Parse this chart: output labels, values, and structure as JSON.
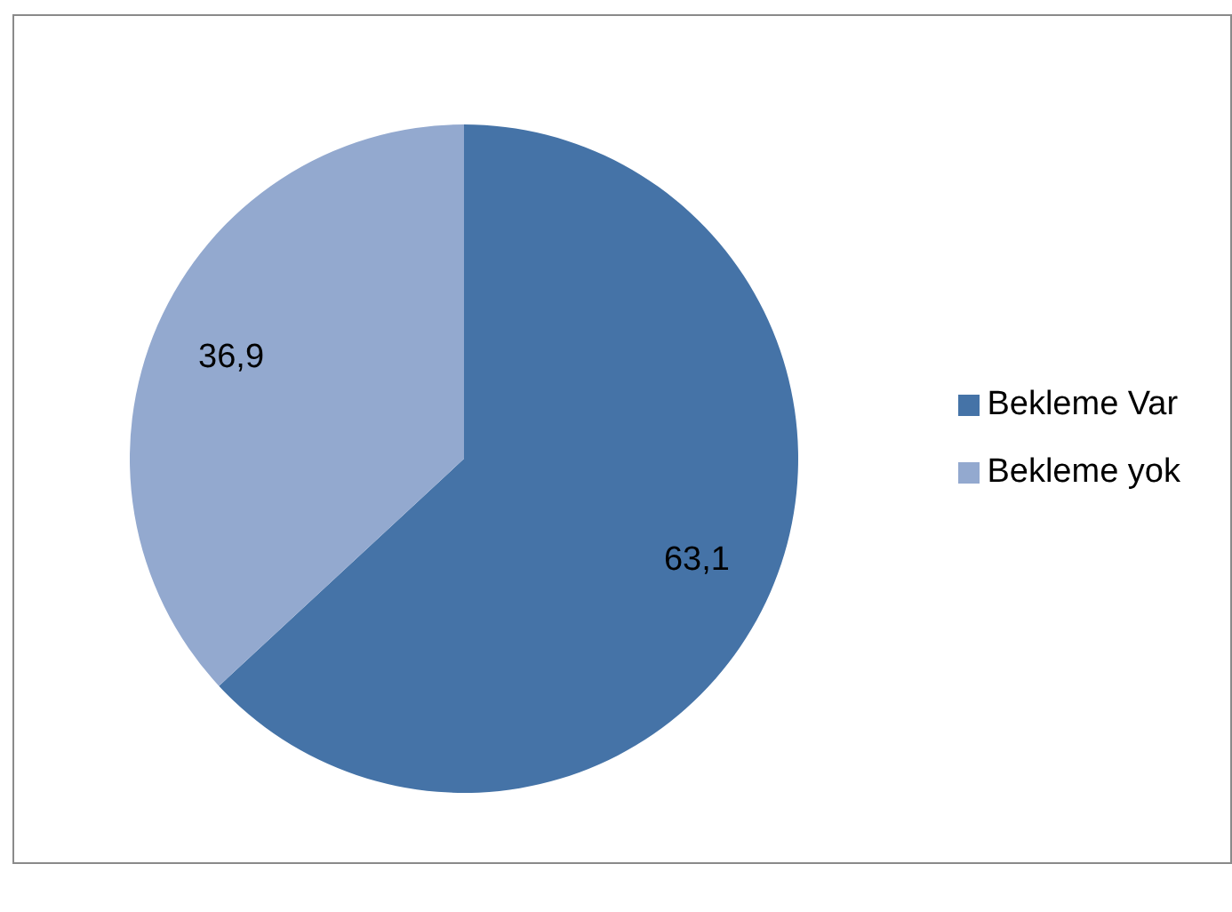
{
  "chart_data": {
    "type": "pie",
    "categories": [
      "Bekleme Var",
      "Bekleme yok"
    ],
    "values": [
      63.1,
      36.9
    ],
    "colors": [
      "#4573a7",
      "#93a9cf"
    ],
    "value_labels": [
      "63,1",
      "36,9"
    ],
    "legend": "right"
  }
}
